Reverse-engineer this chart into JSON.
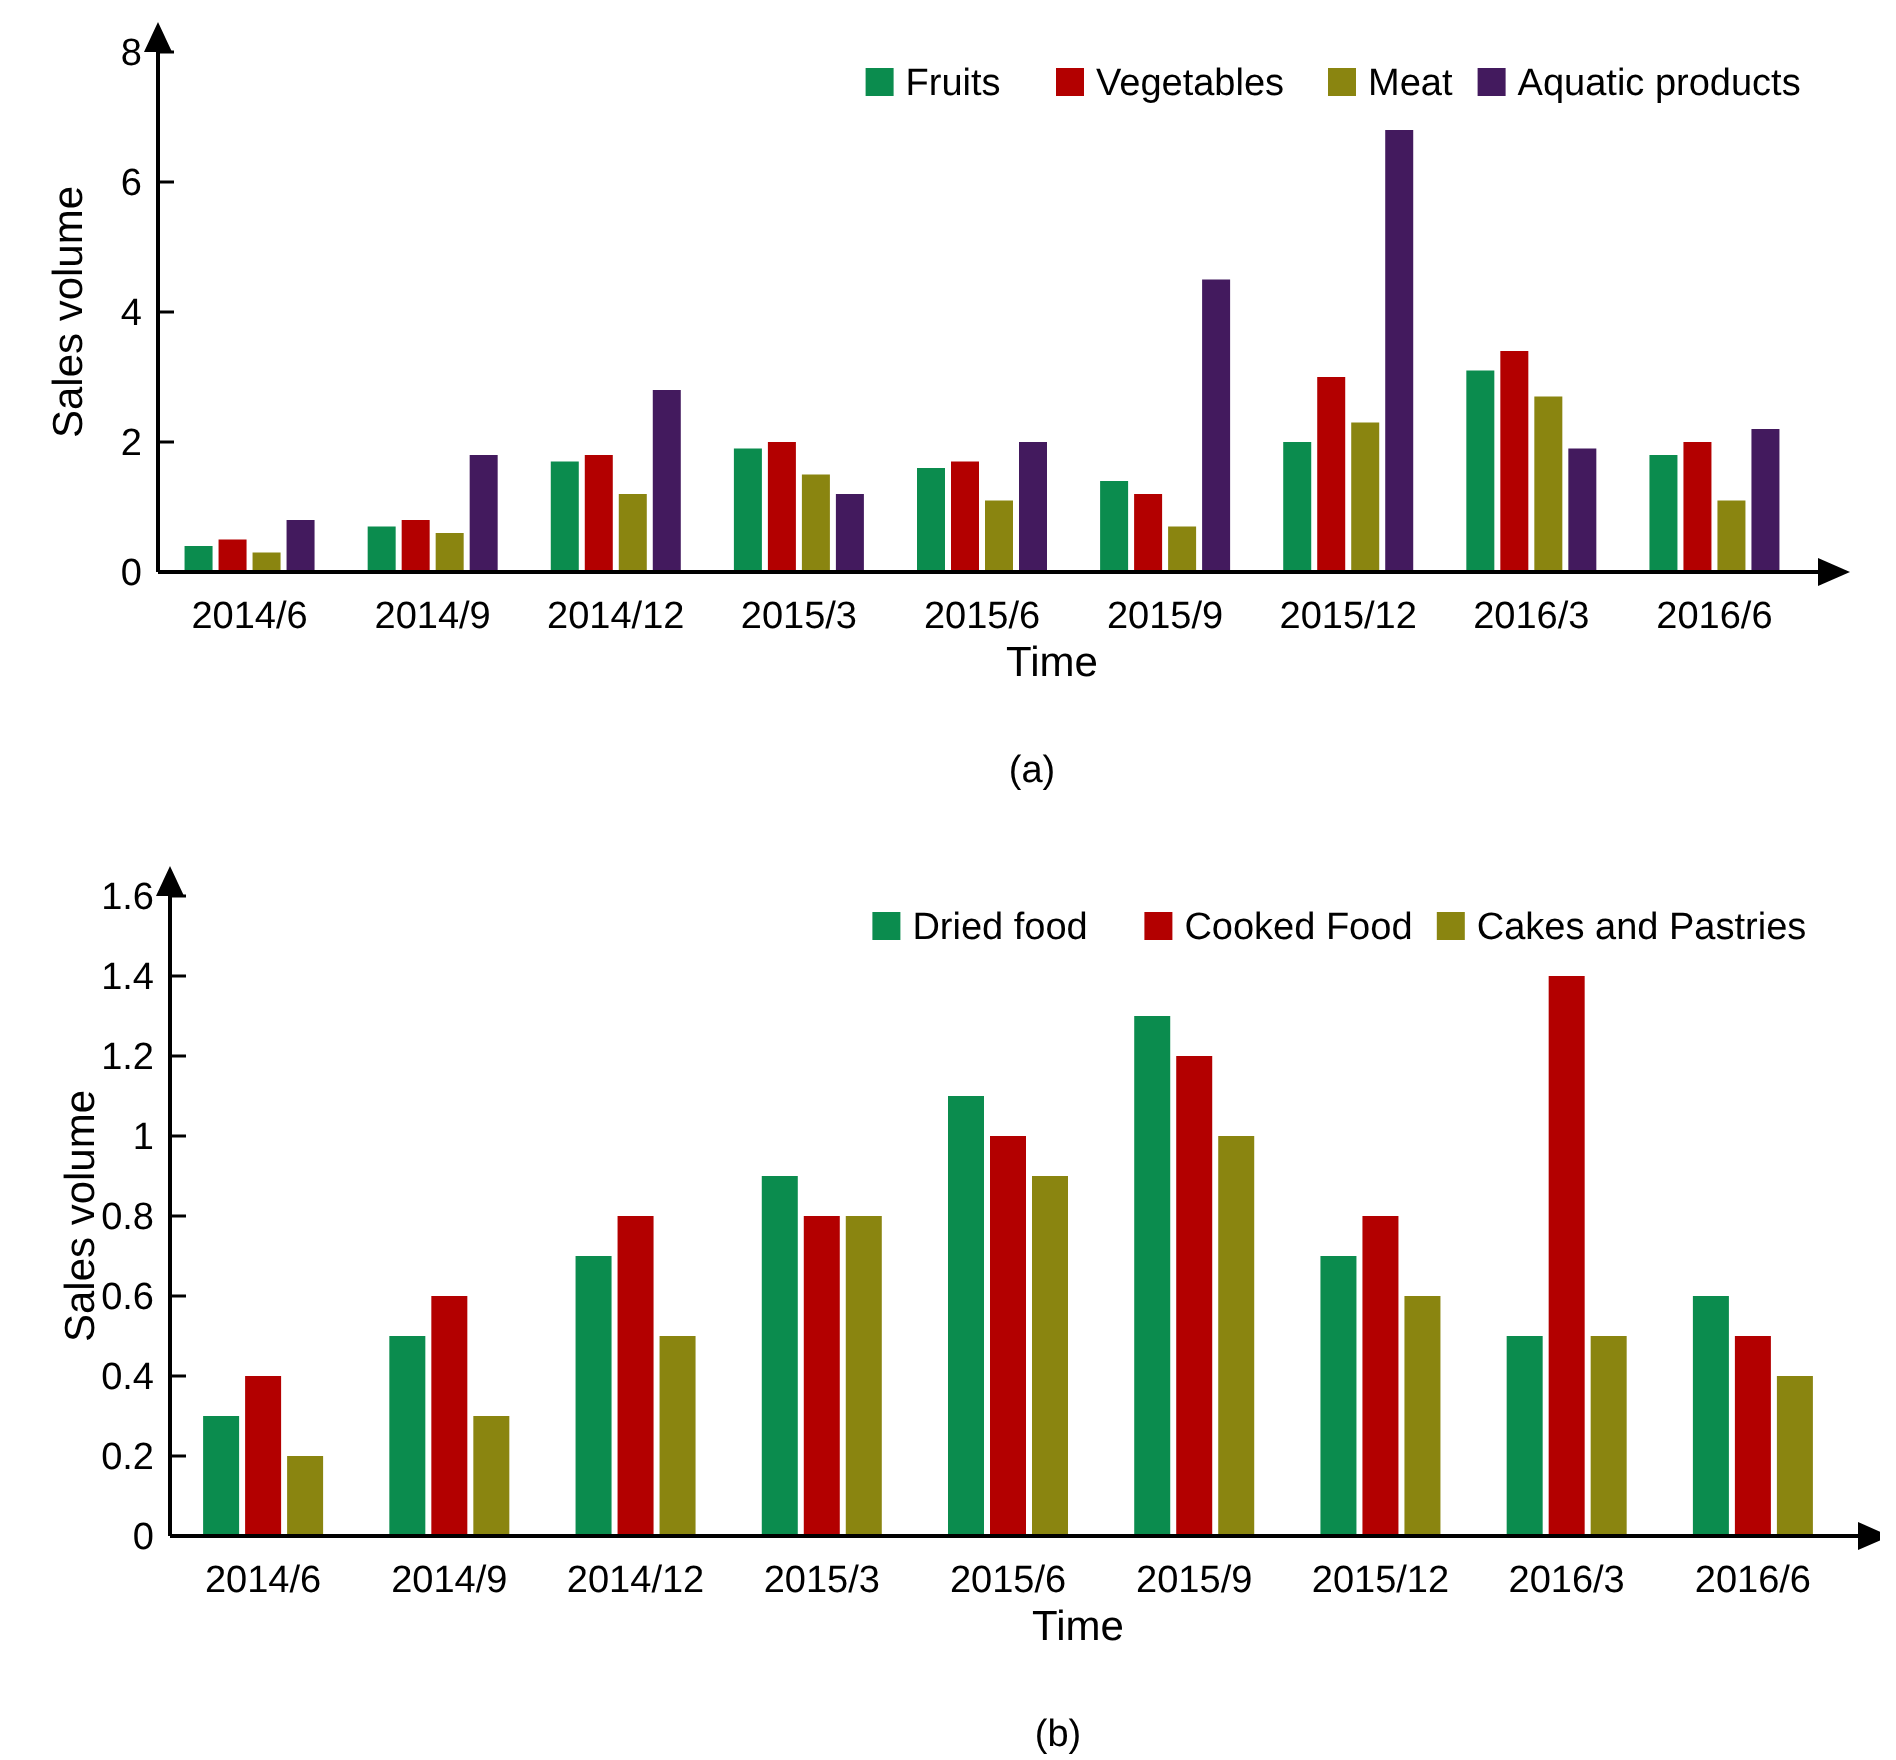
{
  "chart_data": [
    {
      "type": "bar",
      "xlabel": "Time",
      "ylabel": "Sales volume",
      "categories": [
        "2014/6",
        "2014/9",
        "2014/12",
        "2015/3",
        "2015/6",
        "2015/9",
        "2015/12",
        "2016/3",
        "2016/6"
      ],
      "series": [
        {
          "name": "Fruits",
          "color": "#0b8c4e",
          "values": [
            0.4,
            0.7,
            1.7,
            1.9,
            1.6,
            1.4,
            2.0,
            3.1,
            1.8
          ]
        },
        {
          "name": "Vegetables",
          "color": "#b30000",
          "values": [
            0.5,
            0.8,
            1.8,
            2.0,
            1.7,
            1.2,
            3.0,
            3.4,
            2.0
          ]
        },
        {
          "name": "Meat",
          "color": "#8a8510",
          "values": [
            0.3,
            0.6,
            1.2,
            1.5,
            1.1,
            0.7,
            2.3,
            2.7,
            1.1
          ]
        },
        {
          "name": "Aquatic products",
          "color": "#431a5e",
          "values": [
            0.8,
            1.8,
            2.8,
            1.2,
            2.0,
            4.5,
            6.8,
            1.9,
            2.2
          ]
        }
      ],
      "ylim": [
        0,
        8
      ],
      "yticks": [
        0,
        2,
        4,
        6,
        8
      ],
      "legend": "top right",
      "annotations": [
        "(a)"
      ]
    },
    {
      "type": "bar",
      "xlabel": "Time",
      "ylabel": "Sales volume",
      "categories": [
        "2014/6",
        "2014/9",
        "2014/12",
        "2015/3",
        "2015/6",
        "2015/9",
        "2015/12",
        "2016/3",
        "2016/6"
      ],
      "series": [
        {
          "name": "Dried food",
          "color": "#0b8c4e",
          "values": [
            0.3,
            0.5,
            0.7,
            0.9,
            1.1,
            1.3,
            0.7,
            0.5,
            0.6
          ]
        },
        {
          "name": "Cooked Food",
          "color": "#b30000",
          "values": [
            0.4,
            0.6,
            0.8,
            0.8,
            1.0,
            1.2,
            0.8,
            1.4,
            0.5
          ]
        },
        {
          "name": "Cakes and Pastries",
          "color": "#8a8510",
          "values": [
            0.2,
            0.3,
            0.5,
            0.8,
            0.9,
            1.0,
            0.6,
            0.5,
            0.4
          ]
        }
      ],
      "ylim": [
        0,
        1.6
      ],
      "yticks": [
        0,
        0.2,
        0.4,
        0.6,
        0.8,
        1,
        1.2,
        1.4,
        1.6
      ],
      "legend": "top right",
      "annotations": [
        "(b)"
      ]
    }
  ]
}
